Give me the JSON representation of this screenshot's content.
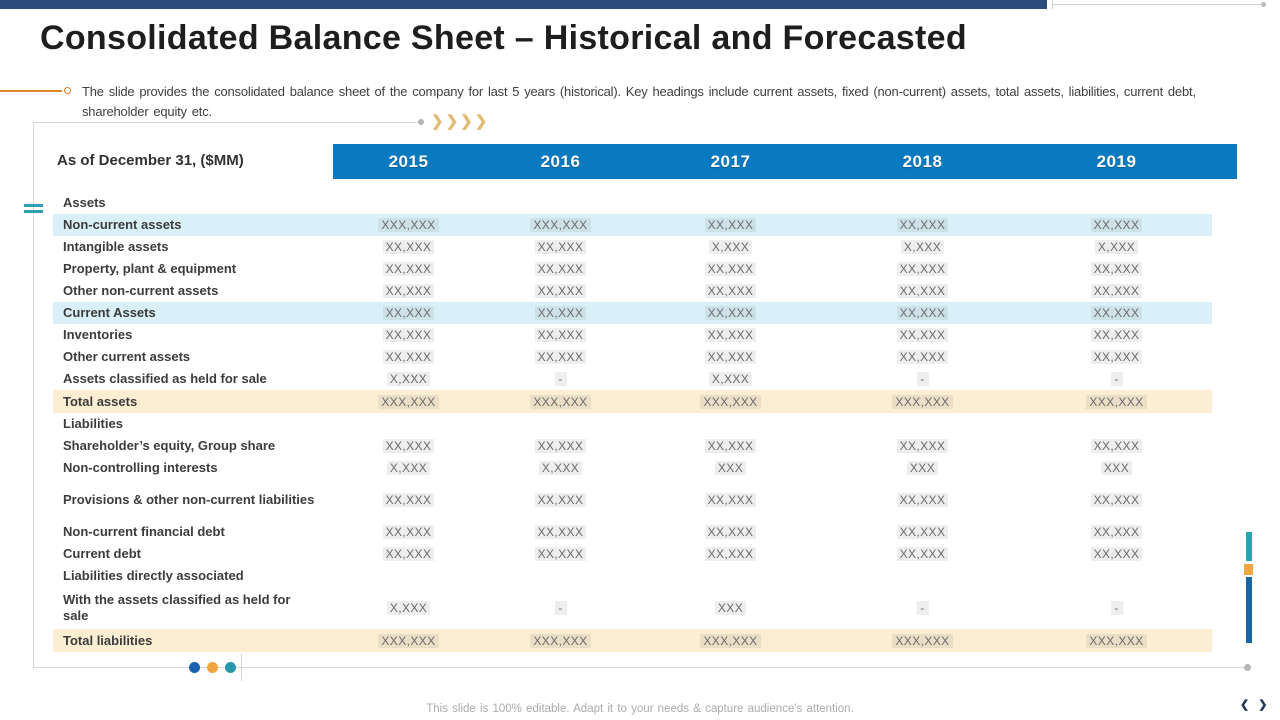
{
  "slide": {
    "title": "Consolidated Balance Sheet – Historical and Forecasted",
    "subtitle": "The slide provides the consolidated balance sheet of the company for last 5 years (historical). Key headings include current assets, fixed (non-current) assets, total assets, liabilities, current debt, shareholder equity etc.",
    "footer_note": "This slide is 100% editable. Adapt it to your needs & capture audience's attention."
  },
  "table": {
    "corner_label": "As of December 31, ($MM)",
    "years": [
      "2015",
      "2016",
      "2017",
      "2018",
      "2019"
    ],
    "rows": [
      {
        "label": "Assets",
        "type": "section",
        "values": [
          "",
          "",
          "",
          "",
          ""
        ]
      },
      {
        "label": "Non-current assets",
        "type": "blue",
        "values": [
          "XXX,XXX",
          "XXX,XXX",
          "XX,XXX",
          "XX,XXX",
          "XX,XXX"
        ]
      },
      {
        "label": "Intangible assets",
        "type": "plain",
        "values": [
          "XX,XXX",
          "XX,XXX",
          "X,XXX",
          "X,XXX",
          "X,XXX"
        ]
      },
      {
        "label": "Property, plant & equipment",
        "type": "plain",
        "values": [
          "XX,XXX",
          "XX,XXX",
          "XX,XXX",
          "XX,XXX",
          "XX,XXX"
        ]
      },
      {
        "label": "Other non-current assets",
        "type": "plain",
        "values": [
          "XX,XXX",
          "XX,XXX",
          "XX,XXX",
          "XX,XXX",
          "XX,XXX"
        ]
      },
      {
        "label": "Current Assets",
        "type": "blue",
        "values": [
          "XX,XXX",
          "XX,XXX",
          "XX,XXX",
          "XX,XXX",
          "XX,XXX"
        ]
      },
      {
        "label": "Inventories",
        "type": "plain",
        "values": [
          "XX,XXX",
          "XX,XXX",
          "XX,XXX",
          "XX,XXX",
          "XX,XXX"
        ]
      },
      {
        "label": "Other current assets",
        "type": "plain",
        "values": [
          "XX,XXX",
          "XX,XXX",
          "XX,XXX",
          "XX,XXX",
          "XX,XXX"
        ]
      },
      {
        "label": "Assets classified as held for sale",
        "type": "plain",
        "values": [
          "X,XXX",
          "-",
          "X,XXX",
          "-",
          "-"
        ]
      },
      {
        "label": "Total assets",
        "type": "total",
        "values": [
          "XXX,XXX",
          "XXX,XXX",
          "XXX,XXX",
          "XXX,XXX",
          "XXX,XXX"
        ]
      },
      {
        "label": "Liabilities",
        "type": "section",
        "values": [
          "",
          "",
          "",
          "",
          ""
        ]
      },
      {
        "label": "Shareholder’s equity, Group share",
        "type": "plain",
        "values": [
          "XX,XXX",
          "XX,XXX",
          "XX,XXX",
          "XX,XXX",
          "XX,XXX"
        ]
      },
      {
        "label": "Non-controlling interests",
        "type": "plain",
        "values": [
          "X,XXX",
          "X,XXX",
          "XXX",
          "XXX",
          "XXX"
        ]
      },
      {
        "label": "Provisions & other non-current liabilities",
        "type": "plain",
        "tall": true,
        "values": [
          "XX,XXX",
          "XX,XXX",
          "XX,XXX",
          "XX,XXX",
          "XX,XXX"
        ]
      },
      {
        "label": "Non-current financial debt",
        "type": "plain",
        "values": [
          "XX,XXX",
          "XX,XXX",
          "XX,XXX",
          "XX,XXX",
          "XX,XXX"
        ]
      },
      {
        "label": "Current debt",
        "type": "plain",
        "values": [
          "XX,XXX",
          "XX,XXX",
          "XX,XXX",
          "XX,XXX",
          "XX,XXX"
        ]
      },
      {
        "label": "Liabilities directly associated",
        "type": "plain",
        "values": [
          "",
          "",
          "",
          "",
          ""
        ]
      },
      {
        "label": "With the assets classified as held for sale",
        "type": "plain",
        "tall": true,
        "values": [
          "X,XXX",
          "-",
          "XXX",
          "-",
          "-"
        ]
      },
      {
        "label": "Total liabilities",
        "type": "total",
        "values": [
          "XXX,XXX",
          "XXX,XXX",
          "XXX,XXX",
          "XXX,XXX",
          "XXX,XXX"
        ]
      }
    ]
  },
  "decorations": {
    "chevrons_glyph": "❯❯❯❯",
    "nav_prev": "❮",
    "nav_next": "❯"
  },
  "colors": {
    "navy": "#2c4a7c",
    "header_blue": "#0a7ac0",
    "row_blue": "#d9f0f9",
    "row_cream": "#fbeed2",
    "accent_orange": "#d9842e",
    "dot_orange": "#f0a640",
    "teal": "#2e9fae",
    "bar_blue": "#1766a6",
    "gold": "#e3ba76"
  }
}
